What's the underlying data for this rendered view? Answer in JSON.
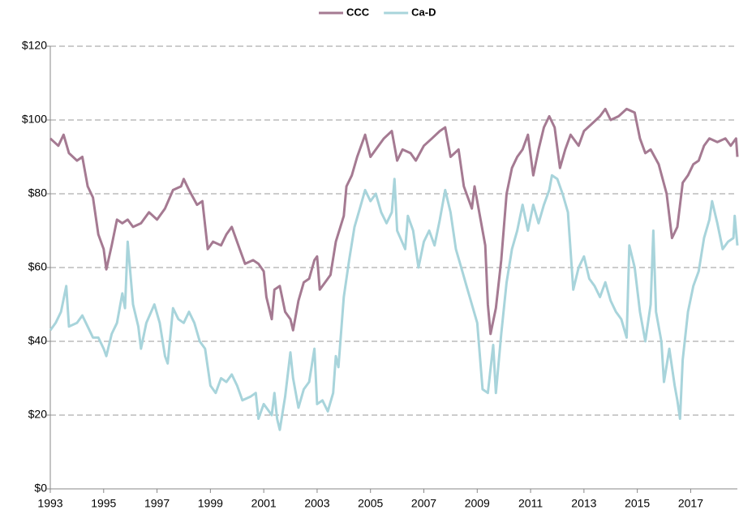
{
  "chart_data": {
    "type": "line",
    "xlim": [
      1993,
      2018.75
    ],
    "xticks": [
      1993,
      1995,
      1997,
      1999,
      2001,
      2003,
      2005,
      2007,
      2009,
      2011,
      2013,
      2015,
      2017
    ],
    "ylim": [
      0,
      120
    ],
    "yticks": [
      {
        "value": 0,
        "label": "$0"
      },
      {
        "value": 20,
        "label": "$20"
      },
      {
        "value": 40,
        "label": "$40"
      },
      {
        "value": 60,
        "label": "$60"
      },
      {
        "value": 80,
        "label": "$80"
      },
      {
        "value": 100,
        "label": "$100"
      },
      {
        "value": 120,
        "label": "$120"
      }
    ],
    "grid": true,
    "legend": "top",
    "series": [
      {
        "name": "CCC",
        "color": "#a57a92",
        "x": [
          1993.0,
          1993.3,
          1993.5,
          1993.7,
          1994.0,
          1994.2,
          1994.4,
          1994.6,
          1994.8,
          1995.0,
          1995.1,
          1995.3,
          1995.5,
          1995.7,
          1995.9,
          1996.1,
          1996.4,
          1996.7,
          1997.0,
          1997.3,
          1997.6,
          1997.9,
          1998.0,
          1998.2,
          1998.5,
          1998.7,
          1998.9,
          1999.1,
          1999.4,
          1999.6,
          1999.8,
          2000.1,
          2000.3,
          2000.6,
          2000.8,
          2001.0,
          2001.1,
          2001.3,
          2001.4,
          2001.6,
          2001.8,
          2002.0,
          2002.1,
          2002.3,
          2002.5,
          2002.7,
          2002.9,
          2003.0,
          2003.1,
          2003.3,
          2003.5,
          2003.7,
          2004.0,
          2004.1,
          2004.3,
          2004.5,
          2004.8,
          2005.0,
          2005.2,
          2005.5,
          2005.8,
          2006.0,
          2006.2,
          2006.5,
          2006.7,
          2007.0,
          2007.3,
          2007.6,
          2007.8,
          2008.0,
          2008.3,
          2008.5,
          2008.8,
          2008.9,
          2009.1,
          2009.3,
          2009.4,
          2009.5,
          2009.7,
          2009.9,
          2010.1,
          2010.3,
          2010.5,
          2010.7,
          2010.9,
          2011.1,
          2011.3,
          2011.5,
          2011.7,
          2011.9,
          2012.1,
          2012.3,
          2012.5,
          2012.8,
          2013.0,
          2013.3,
          2013.6,
          2013.8,
          2014.0,
          2014.3,
          2014.6,
          2014.9,
          2015.1,
          2015.3,
          2015.5,
          2015.8,
          2016.1,
          2016.3,
          2016.5,
          2016.7,
          2016.9,
          2017.1,
          2017.3,
          2017.5,
          2017.7,
          2018.0,
          2018.3,
          2018.5,
          2018.7,
          2018.75
        ],
        "values": [
          95,
          93,
          96,
          91,
          89,
          90,
          82,
          79,
          69,
          65,
          59.5,
          66,
          73,
          72,
          73,
          71,
          72,
          75,
          73,
          76,
          81,
          82,
          84,
          81,
          77,
          78,
          65,
          67,
          66,
          69,
          71,
          65,
          61,
          62,
          61,
          59,
          52,
          46,
          54,
          55,
          48,
          46,
          43,
          51,
          56,
          57,
          62,
          63,
          54,
          56,
          58,
          67,
          74,
          82,
          85,
          90,
          96,
          90,
          92,
          95,
          97,
          89,
          92,
          91,
          89,
          93,
          95,
          97,
          98,
          90,
          92,
          82,
          76,
          82,
          74,
          66,
          50,
          42,
          49,
          62,
          80,
          87,
          90,
          92,
          96,
          85,
          92,
          98,
          101,
          98,
          87,
          92,
          96,
          93,
          97,
          99,
          101,
          103,
          100,
          101,
          103,
          102,
          95,
          91,
          92,
          88,
          80,
          68,
          71,
          83,
          85,
          88,
          89,
          93,
          95,
          94,
          95,
          93,
          95,
          90
        ]
      },
      {
        "name": "Ca-D",
        "color": "#a8d4db",
        "x": [
          1993.0,
          1993.2,
          1993.4,
          1993.6,
          1993.7,
          1994.0,
          1994.2,
          1994.4,
          1994.6,
          1994.8,
          1995.0,
          1995.1,
          1995.3,
          1995.5,
          1995.7,
          1995.8,
          1995.9,
          1996.1,
          1996.3,
          1996.4,
          1996.6,
          1996.9,
          1997.1,
          1997.3,
          1997.4,
          1997.6,
          1997.8,
          1998.0,
          1998.2,
          1998.4,
          1998.6,
          1998.8,
          1999.0,
          1999.2,
          1999.4,
          1999.6,
          1999.8,
          2000.0,
          2000.2,
          2000.5,
          2000.7,
          2000.8,
          2001.0,
          2001.3,
          2001.4,
          2001.5,
          2001.6,
          2001.8,
          2002.0,
          2002.1,
          2002.3,
          2002.5,
          2002.7,
          2002.9,
          2003.0,
          2003.2,
          2003.4,
          2003.6,
          2003.7,
          2003.8,
          2004.0,
          2004.2,
          2004.4,
          2004.6,
          2004.8,
          2005.0,
          2005.2,
          2005.4,
          2005.6,
          2005.8,
          2005.9,
          2006.0,
          2006.3,
          2006.4,
          2006.6,
          2006.8,
          2007.0,
          2007.2,
          2007.4,
          2007.6,
          2007.8,
          2008.0,
          2008.2,
          2008.4,
          2008.6,
          2008.8,
          2009.0,
          2009.2,
          2009.4,
          2009.6,
          2009.7,
          2009.9,
          2010.1,
          2010.3,
          2010.5,
          2010.7,
          2010.9,
          2011.1,
          2011.3,
          2011.5,
          2011.7,
          2011.8,
          2012.0,
          2012.2,
          2012.4,
          2012.6,
          2012.8,
          2013.0,
          2013.2,
          2013.4,
          2013.6,
          2013.8,
          2014.0,
          2014.2,
          2014.4,
          2014.6,
          2014.7,
          2014.9,
          2015.1,
          2015.3,
          2015.5,
          2015.6,
          2015.7,
          2015.9,
          2016.0,
          2016.2,
          2016.4,
          2016.5,
          2016.6,
          2016.7,
          2016.9,
          2017.1,
          2017.3,
          2017.5,
          2017.7,
          2017.8,
          2018.0,
          2018.2,
          2018.4,
          2018.6,
          2018.65,
          2018.75
        ],
        "values": [
          43,
          45,
          48,
          55,
          44,
          45,
          47,
          44,
          41,
          41,
          38,
          36,
          42,
          45,
          53,
          49,
          67,
          50,
          44,
          38,
          45,
          50,
          45,
          36,
          34,
          49,
          46,
          45,
          48,
          45,
          40,
          38,
          28,
          26,
          30,
          29,
          31,
          28,
          24,
          25,
          26,
          19,
          23,
          20,
          26,
          19,
          16,
          25,
          37,
          30,
          22,
          27,
          29,
          38,
          23,
          24,
          21,
          26,
          36,
          33,
          52,
          62,
          71,
          76,
          81,
          78,
          80,
          75,
          72,
          75,
          84,
          70,
          65,
          74,
          70,
          60,
          67,
          70,
          66,
          73,
          81,
          75,
          65,
          60,
          55,
          50,
          45,
          27,
          26,
          39,
          26,
          42,
          56,
          65,
          70,
          77,
          70,
          77,
          72,
          77,
          81,
          85,
          84,
          80,
          75,
          54,
          60,
          63,
          57,
          55,
          52,
          56,
          51,
          48,
          46,
          41,
          66,
          60,
          48,
          40,
          50,
          70,
          48,
          40,
          29,
          38,
          28,
          24,
          19,
          35,
          48,
          55,
          59,
          68,
          73,
          78,
          72,
          65,
          67,
          68,
          74,
          66
        ]
      }
    ]
  }
}
